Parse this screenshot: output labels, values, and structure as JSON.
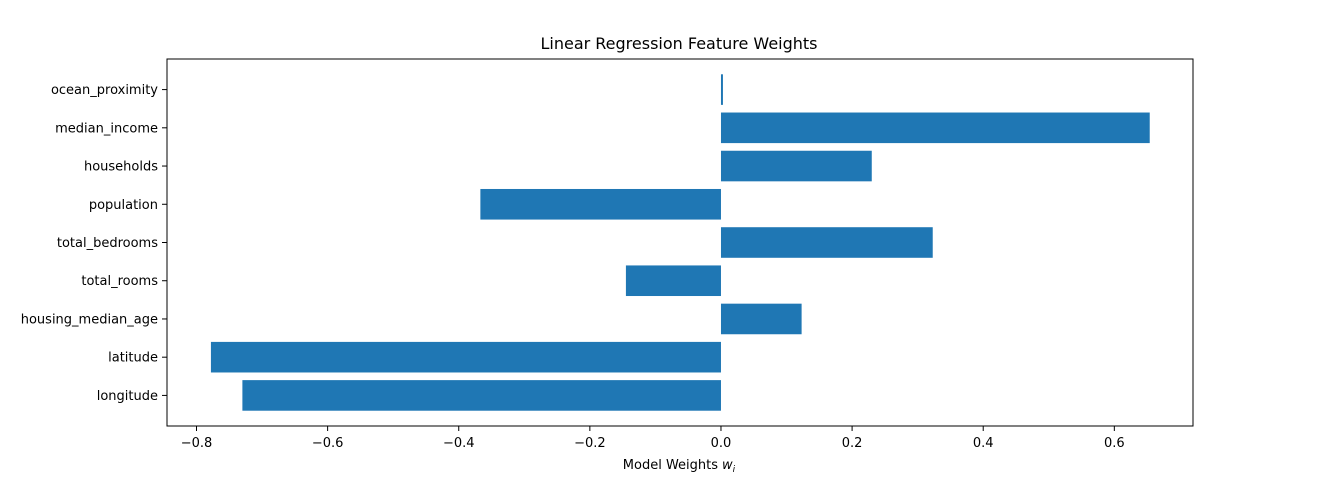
{
  "chart_data": {
    "type": "bar",
    "orientation": "horizontal",
    "title": "Linear Regression Feature Weights",
    "xlabel": "Model Weights",
    "xlabel_symbol": "w",
    "xlabel_subscript": "i",
    "ylabel": "",
    "categories": [
      "longitude",
      "latitude",
      "housing_median_age",
      "total_rooms",
      "total_bedrooms",
      "population",
      "households",
      "median_income",
      "ocean_proximity"
    ],
    "values": [
      -0.73,
      -0.778,
      0.123,
      -0.145,
      0.323,
      -0.367,
      0.23,
      0.654,
      0.003
    ],
    "xlim": [
      -0.845,
      0.72
    ],
    "xticks": [
      -0.8,
      -0.6,
      -0.4,
      -0.2,
      0.0,
      0.2,
      0.4,
      0.6
    ],
    "xtick_labels": [
      "−0.8",
      "−0.6",
      "−0.4",
      "−0.2",
      "0.0",
      "0.2",
      "0.4",
      "0.6"
    ],
    "grid": false,
    "legend": "none",
    "bar_color": "#1f77b4"
  }
}
